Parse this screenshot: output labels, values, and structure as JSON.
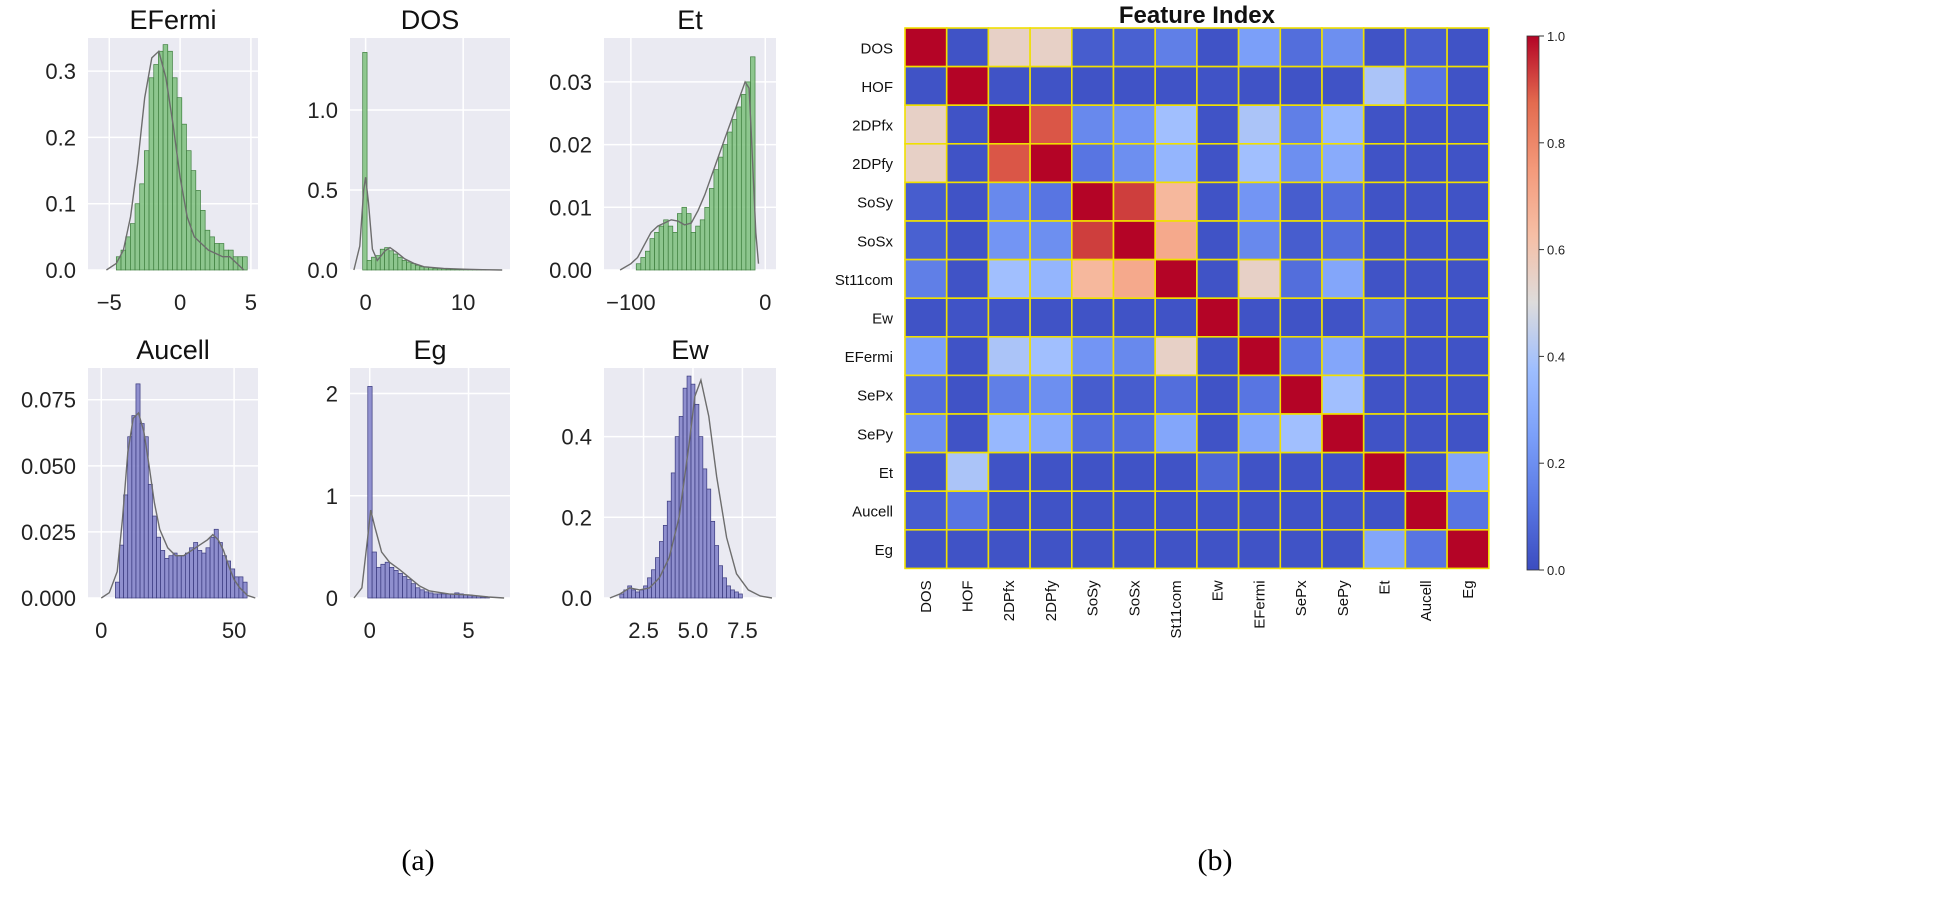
{
  "panel_labels": {
    "a": "(a)",
    "b": "(b)"
  },
  "colors": {
    "green_fill": "#7dbf7d",
    "green_edge": "#3f7f3f",
    "blue_fill": "#7f7fc8",
    "blue_edge": "#3a3a7e",
    "panel_bg": "#eaeaf2",
    "grid": "#ffffff",
    "kde": "#6d6d6d",
    "heat_border": "#f0e000"
  },
  "chart_data": [
    {
      "type": "bar",
      "variant": "histogram_kde",
      "title": "EFermi",
      "color": "green",
      "xlim": [
        -6.5,
        5.5
      ],
      "ylim": [
        0,
        0.35
      ],
      "xticks": [
        -5,
        0,
        5
      ],
      "xtick_labels": [
        "−5",
        "0",
        "5"
      ],
      "yticks": [
        0,
        0.1,
        0.2,
        0.3
      ],
      "ytick_labels": [
        "0.0",
        "0.1",
        "0.2",
        "0.3"
      ],
      "bin_start": -4.5,
      "bin_width": 0.33,
      "values": [
        0.02,
        0.03,
        0.05,
        0.07,
        0.1,
        0.13,
        0.18,
        0.29,
        0.31,
        0.33,
        0.34,
        0.33,
        0.29,
        0.26,
        0.22,
        0.18,
        0.15,
        0.12,
        0.09,
        0.06,
        0.05,
        0.04,
        0.04,
        0.03,
        0.03,
        0.02,
        0.02,
        0.02
      ],
      "kde_x": [
        -5.2,
        -4.5,
        -4,
        -3.5,
        -3,
        -2.5,
        -2,
        -1.5,
        -1,
        -0.5,
        0,
        0.5,
        1,
        1.5,
        2,
        2.5,
        3,
        3.5,
        4,
        4.5
      ],
      "kde_y": [
        0,
        0.01,
        0.03,
        0.08,
        0.16,
        0.26,
        0.32,
        0.33,
        0.29,
        0.22,
        0.14,
        0.08,
        0.05,
        0.04,
        0.03,
        0.025,
        0.02,
        0.02,
        0.01,
        0
      ]
    },
    {
      "type": "bar",
      "variant": "histogram_kde",
      "title": "DOS",
      "color": "green",
      "xlim": [
        -1.6,
        14.8
      ],
      "ylim": [
        0,
        1.45
      ],
      "xticks": [
        0,
        10
      ],
      "xtick_labels": [
        "0",
        "10"
      ],
      "yticks": [
        0,
        0.5,
        1.0
      ],
      "ytick_labels": [
        "0.0",
        "0.5",
        "1.0"
      ],
      "bin_start": -0.3,
      "bin_width": 0.45,
      "values": [
        1.36,
        0.06,
        0.08,
        0.09,
        0.13,
        0.14,
        0.12,
        0.1,
        0.08,
        0.06,
        0.05,
        0.04,
        0.03,
        0.02,
        0.02,
        0.015,
        0.01,
        0.01,
        0.008,
        0.006,
        0.005,
        0.004,
        0.003,
        0.003,
        0.002,
        0.002,
        0.002,
        0.002,
        0.001,
        0.001,
        0.001
      ],
      "kde_x": [
        -1.2,
        -0.6,
        -0.2,
        0,
        0.3,
        0.7,
        1.2,
        2,
        2.5,
        3.2,
        4,
        5,
        6,
        8,
        10,
        12,
        14
      ],
      "kde_y": [
        0,
        0.15,
        0.5,
        0.58,
        0.42,
        0.13,
        0.06,
        0.12,
        0.14,
        0.11,
        0.07,
        0.04,
        0.02,
        0.01,
        0.005,
        0.002,
        0
      ]
    },
    {
      "type": "bar",
      "variant": "histogram_kde",
      "title": "Et",
      "color": "green",
      "xlim": [
        -120,
        8
      ],
      "ylim": [
        0,
        0.037
      ],
      "xticks": [
        -100,
        0
      ],
      "xtick_labels": [
        "−100",
        "0"
      ],
      "yticks": [
        0,
        0.01,
        0.02,
        0.03
      ],
      "ytick_labels": [
        "0.00",
        "0.01",
        "0.02",
        "0.03"
      ],
      "bin_start": -96,
      "bin_width": 3.4,
      "values": [
        0.001,
        0.002,
        0.003,
        0.005,
        0.006,
        0.007,
        0.008,
        0.007,
        0.006,
        0.009,
        0.01,
        0.009,
        0.006,
        0.007,
        0.008,
        0.01,
        0.013,
        0.016,
        0.018,
        0.02,
        0.022,
        0.024,
        0.026,
        0.028,
        0.03,
        0.034
      ],
      "kde_x": [
        -108,
        -100,
        -95,
        -90,
        -85,
        -80,
        -75,
        -70,
        -65,
        -60,
        -55,
        -50,
        -45,
        -40,
        -35,
        -30,
        -25,
        -20,
        -15,
        -12,
        -10,
        -7,
        -5
      ],
      "kde_y": [
        0,
        0.001,
        0.002,
        0.004,
        0.006,
        0.007,
        0.0075,
        0.008,
        0.0078,
        0.0072,
        0.0075,
        0.0095,
        0.012,
        0.015,
        0.018,
        0.021,
        0.024,
        0.027,
        0.03,
        0.029,
        0.02,
        0.006,
        0.001
      ]
    },
    {
      "type": "bar",
      "variant": "histogram_kde",
      "title": "Aucell",
      "color": "blue",
      "xlim": [
        -5,
        59
      ],
      "ylim": [
        0,
        0.087
      ],
      "xticks": [
        0,
        50
      ],
      "xtick_labels": [
        "0",
        "50"
      ],
      "yticks": [
        0,
        0.025,
        0.05,
        0.075
      ],
      "ytick_labels": [
        "0.000",
        "0.025",
        "0.050",
        "0.075"
      ],
      "bin_start": 5.3,
      "bin_width": 1.55,
      "values": [
        0.006,
        0.02,
        0.039,
        0.061,
        0.069,
        0.081,
        0.066,
        0.061,
        0.043,
        0.031,
        0.023,
        0.018,
        0.015,
        0.016,
        0.017,
        0.016,
        0.016,
        0.017,
        0.019,
        0.021,
        0.018,
        0.017,
        0.019,
        0.023,
        0.026,
        0.021,
        0.016,
        0.014,
        0.011,
        0.008,
        0.008,
        0.006
      ],
      "kde_x": [
        0,
        3,
        6,
        8,
        10,
        12,
        14,
        16,
        18,
        20,
        22,
        25,
        28,
        31,
        34,
        37,
        40,
        42,
        44,
        46,
        48,
        50,
        52,
        55,
        58
      ],
      "kde_y": [
        0,
        0.002,
        0.01,
        0.03,
        0.055,
        0.068,
        0.07,
        0.063,
        0.05,
        0.036,
        0.026,
        0.019,
        0.016,
        0.016,
        0.018,
        0.02,
        0.022,
        0.024,
        0.022,
        0.018,
        0.012,
        0.007,
        0.004,
        0.001,
        0
      ]
    },
    {
      "type": "bar",
      "variant": "histogram_kde",
      "title": "Eg",
      "color": "blue",
      "xlim": [
        -1.0,
        7.1
      ],
      "ylim": [
        0,
        2.25
      ],
      "xticks": [
        0,
        5
      ],
      "xtick_labels": [
        "0",
        "5"
      ],
      "yticks": [
        0,
        1,
        2
      ],
      "ytick_labels": [
        "0",
        "1",
        "2"
      ],
      "bin_start": -0.1,
      "bin_width": 0.22,
      "values": [
        2.07,
        0.45,
        0.3,
        0.33,
        0.35,
        0.3,
        0.27,
        0.24,
        0.21,
        0.18,
        0.14,
        0.1,
        0.08,
        0.06,
        0.05,
        0.04,
        0.04,
        0.04,
        0.04,
        0.04,
        0.05,
        0.04,
        0.03,
        0.03,
        0.02,
        0.02,
        0.01,
        0.01
      ],
      "kde_x": [
        -0.8,
        -0.4,
        -0.1,
        0.05,
        0.25,
        0.6,
        1,
        1.5,
        2,
        2.5,
        3,
        4,
        5,
        6,
        6.8
      ],
      "kde_y": [
        0,
        0.1,
        0.6,
        0.86,
        0.7,
        0.45,
        0.35,
        0.28,
        0.2,
        0.12,
        0.07,
        0.04,
        0.03,
        0.01,
        0
      ]
    },
    {
      "type": "bar",
      "variant": "histogram_kde",
      "title": "Ew",
      "color": "blue",
      "xlim": [
        0.5,
        9.2
      ],
      "ylim": [
        0,
        0.57
      ],
      "xticks": [
        2.5,
        5.0,
        7.5
      ],
      "xtick_labels": [
        "2.5",
        "5.0",
        "7.5"
      ],
      "yticks": [
        0,
        0.2,
        0.4
      ],
      "ytick_labels": [
        "0.0",
        "0.2",
        "0.4"
      ],
      "bin_start": 1.3,
      "bin_width": 0.2,
      "values": [
        0.01,
        0.02,
        0.03,
        0.02,
        0.015,
        0.02,
        0.03,
        0.05,
        0.07,
        0.1,
        0.14,
        0.18,
        0.24,
        0.31,
        0.4,
        0.45,
        0.52,
        0.55,
        0.53,
        0.48,
        0.4,
        0.32,
        0.27,
        0.19,
        0.13,
        0.08,
        0.05,
        0.03,
        0.02,
        0.015,
        0.01
      ],
      "kde_x": [
        0.8,
        1.3,
        1.8,
        2.3,
        2.8,
        3.3,
        3.8,
        4.3,
        4.8,
        5.1,
        5.4,
        5.8,
        6.2,
        6.7,
        7.2,
        7.8,
        8.4,
        9
      ],
      "kde_y": [
        0,
        0.01,
        0.025,
        0.02,
        0.025,
        0.05,
        0.1,
        0.2,
        0.38,
        0.5,
        0.54,
        0.45,
        0.3,
        0.15,
        0.06,
        0.02,
        0.005,
        0
      ]
    },
    {
      "type": "heatmap",
      "title": "Feature Index",
      "labels": [
        "DOS",
        "HOF",
        "2DPfx",
        "2DPfy",
        "SoSy",
        "SoSx",
        "St11com",
        "Ew",
        "EFermi",
        "SePx",
        "SePy",
        "Et",
        "Aucell",
        "Eg"
      ],
      "colorbar": {
        "range": [
          0,
          1
        ],
        "ticks": [
          0,
          0.2,
          0.4,
          0.6,
          0.8,
          1.0
        ],
        "tick_labels": [
          "0.0",
          "0.2",
          "0.4",
          "0.6",
          "0.8",
          "1.0"
        ],
        "cmap": "coolwarm"
      },
      "matrix": [
        [
          1.0,
          0.02,
          0.55,
          0.55,
          0.05,
          0.06,
          0.15,
          0.02,
          0.25,
          0.1,
          0.2,
          0.02,
          0.05,
          0.02
        ],
        [
          0.02,
          1.0,
          0.02,
          0.02,
          0.02,
          0.02,
          0.02,
          0.02,
          0.02,
          0.02,
          0.02,
          0.4,
          0.12,
          0.02
        ],
        [
          0.55,
          0.02,
          1.0,
          0.9,
          0.18,
          0.22,
          0.38,
          0.02,
          0.4,
          0.15,
          0.35,
          0.02,
          0.02,
          0.02
        ],
        [
          0.55,
          0.02,
          0.9,
          1.0,
          0.12,
          0.2,
          0.34,
          0.02,
          0.38,
          0.2,
          0.3,
          0.02,
          0.02,
          0.02
        ],
        [
          0.05,
          0.02,
          0.18,
          0.12,
          1.0,
          0.93,
          0.65,
          0.02,
          0.22,
          0.05,
          0.1,
          0.02,
          0.02,
          0.02
        ],
        [
          0.06,
          0.02,
          0.22,
          0.2,
          0.93,
          1.0,
          0.7,
          0.02,
          0.18,
          0.05,
          0.1,
          0.02,
          0.02,
          0.02
        ],
        [
          0.15,
          0.02,
          0.38,
          0.34,
          0.65,
          0.7,
          1.0,
          0.02,
          0.55,
          0.1,
          0.28,
          0.02,
          0.02,
          0.02
        ],
        [
          0.02,
          0.02,
          0.02,
          0.02,
          0.02,
          0.02,
          0.02,
          1.0,
          0.02,
          0.02,
          0.02,
          0.08,
          0.02,
          0.02
        ],
        [
          0.25,
          0.02,
          0.4,
          0.38,
          0.22,
          0.18,
          0.55,
          0.02,
          1.0,
          0.12,
          0.28,
          0.02,
          0.02,
          0.02
        ],
        [
          0.1,
          0.02,
          0.15,
          0.2,
          0.05,
          0.05,
          0.1,
          0.02,
          0.12,
          1.0,
          0.38,
          0.02,
          0.02,
          0.02
        ],
        [
          0.2,
          0.02,
          0.35,
          0.3,
          0.1,
          0.1,
          0.28,
          0.02,
          0.28,
          0.38,
          1.0,
          0.02,
          0.02,
          0.02
        ],
        [
          0.02,
          0.4,
          0.02,
          0.02,
          0.02,
          0.02,
          0.02,
          0.08,
          0.02,
          0.02,
          0.02,
          1.0,
          0.02,
          0.28
        ],
        [
          0.05,
          0.12,
          0.02,
          0.02,
          0.02,
          0.02,
          0.02,
          0.02,
          0.02,
          0.02,
          0.02,
          0.02,
          1.0,
          0.12
        ],
        [
          0.02,
          0.02,
          0.02,
          0.02,
          0.02,
          0.02,
          0.02,
          0.02,
          0.02,
          0.02,
          0.02,
          0.28,
          0.12,
          1.0
        ]
      ]
    }
  ]
}
